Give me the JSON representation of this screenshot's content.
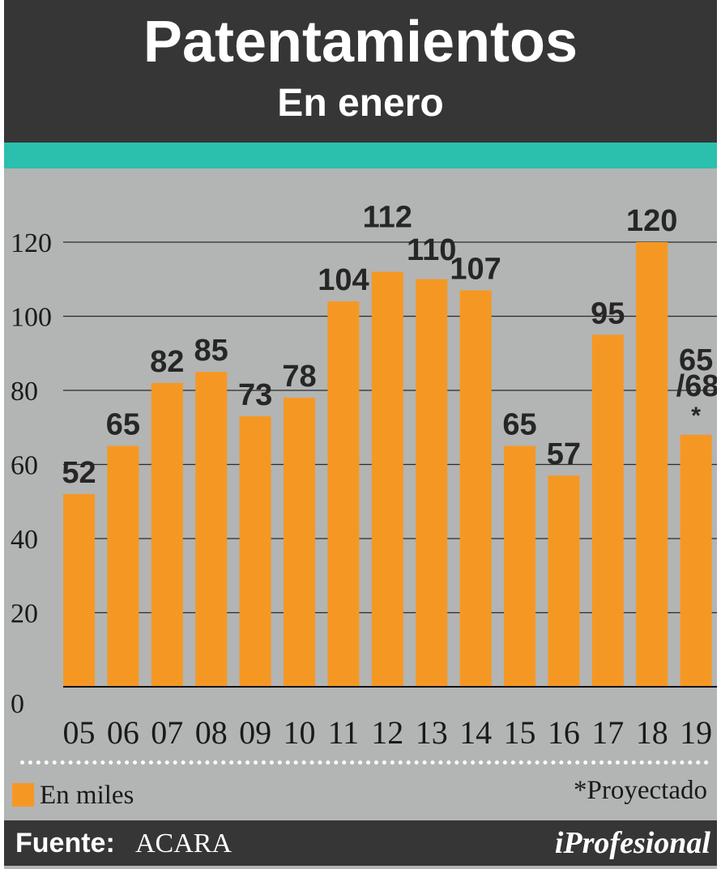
{
  "header": {
    "title": "Patentamientos",
    "subtitle": "En enero"
  },
  "colors": {
    "header_bg": "#363636",
    "accent": "#2bbfad",
    "plot_bg": "#b3b4b4",
    "bar": "#f59823",
    "gridline": "#2a2a2a"
  },
  "chart_data": {
    "type": "bar",
    "title": "Patentamientos",
    "subtitle": "En enero",
    "categories": [
      "05",
      "06",
      "07",
      "08",
      "09",
      "10",
      "11",
      "12",
      "13",
      "14",
      "15",
      "16",
      "17",
      "18",
      "19"
    ],
    "values": [
      52,
      65,
      82,
      85,
      73,
      78,
      104,
      112,
      110,
      107,
      65,
      57,
      95,
      120,
      68
    ],
    "data_labels": [
      "52",
      "65",
      "82",
      "85",
      "73",
      "78",
      "104",
      "112",
      "110",
      "107",
      "65",
      "57",
      "95",
      "120",
      "65\n/68\n*"
    ],
    "yticks": [
      0,
      20,
      40,
      60,
      80,
      100,
      120
    ],
    "ylim": [
      0,
      120
    ],
    "grid": true,
    "unit_legend": "En miles",
    "note": "*Proyectado"
  },
  "footer": {
    "source_label": "Fuente:",
    "source_value": "ACARA",
    "brand": "iProfesional"
  }
}
